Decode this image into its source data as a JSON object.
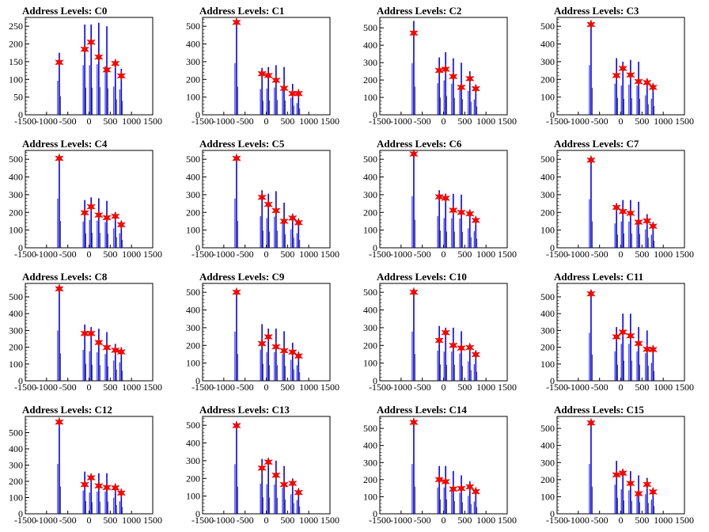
{
  "charts": [
    {
      "title": "Address Levels: C0",
      "ymax": 275,
      "yticks": [
        0,
        50,
        100,
        150,
        200,
        250
      ],
      "spikes": [
        [
          -700,
          175
        ],
        [
          -100,
          255
        ],
        [
          50,
          255
        ],
        [
          230,
          260
        ],
        [
          420,
          250
        ],
        [
          620,
          145
        ],
        [
          760,
          130
        ]
      ],
      "stars": [
        [
          -700,
          148
        ],
        [
          -100,
          185
        ],
        [
          50,
          205
        ],
        [
          230,
          163
        ],
        [
          420,
          127
        ],
        [
          620,
          145
        ],
        [
          760,
          110
        ]
      ]
    },
    {
      "title": "Address Levels: C1",
      "ymax": 550,
      "yticks": [
        0,
        100,
        200,
        300,
        400,
        500
      ],
      "spikes": [
        [
          -700,
          530
        ],
        [
          -100,
          265
        ],
        [
          50,
          270
        ],
        [
          230,
          280
        ],
        [
          420,
          270
        ],
        [
          620,
          175
        ],
        [
          760,
          120
        ]
      ],
      "stars": [
        [
          -700,
          522
        ],
        [
          -100,
          232
        ],
        [
          50,
          222
        ],
        [
          230,
          195
        ],
        [
          420,
          150
        ],
        [
          620,
          120
        ],
        [
          760,
          120
        ]
      ]
    },
    {
      "title": "Address Levels: C2",
      "ymax": 560,
      "yticks": [
        0,
        100,
        200,
        300,
        400,
        500
      ],
      "spikes": [
        [
          -700,
          540
        ],
        [
          -100,
          330
        ],
        [
          50,
          360
        ],
        [
          230,
          325
        ],
        [
          420,
          300
        ],
        [
          620,
          250
        ],
        [
          760,
          160
        ]
      ],
      "stars": [
        [
          -700,
          470
        ],
        [
          -100,
          255
        ],
        [
          50,
          262
        ],
        [
          230,
          220
        ],
        [
          420,
          158
        ],
        [
          620,
          208
        ],
        [
          760,
          150
        ]
      ]
    },
    {
      "title": "Address Levels: C3",
      "ymax": 550,
      "yticks": [
        0,
        100,
        200,
        300,
        400,
        500
      ],
      "spikes": [
        [
          -700,
          510
        ],
        [
          -100,
          320
        ],
        [
          50,
          300
        ],
        [
          230,
          310
        ],
        [
          420,
          300
        ],
        [
          620,
          200
        ],
        [
          760,
          165
        ]
      ],
      "stars": [
        [
          -700,
          510
        ],
        [
          -100,
          222
        ],
        [
          50,
          262
        ],
        [
          230,
          225
        ],
        [
          420,
          188
        ],
        [
          620,
          182
        ],
        [
          760,
          155
        ]
      ]
    },
    {
      "title": "Address Levels: C4",
      "ymax": 550,
      "yticks": [
        0,
        100,
        200,
        300,
        400,
        500
      ],
      "spikes": [
        [
          -700,
          505
        ],
        [
          -100,
          270
        ],
        [
          50,
          285
        ],
        [
          230,
          280
        ],
        [
          420,
          265
        ],
        [
          620,
          200
        ],
        [
          760,
          150
        ]
      ],
      "stars": [
        [
          -700,
          505
        ],
        [
          -100,
          198
        ],
        [
          50,
          232
        ],
        [
          230,
          185
        ],
        [
          420,
          170
        ],
        [
          620,
          178
        ],
        [
          760,
          130
        ]
      ]
    },
    {
      "title": "Address Levels: C5",
      "ymax": 550,
      "yticks": [
        0,
        100,
        200,
        300,
        400,
        500
      ],
      "spikes": [
        [
          -700,
          505
        ],
        [
          -100,
          325
        ],
        [
          50,
          305
        ],
        [
          230,
          320
        ],
        [
          420,
          255
        ],
        [
          620,
          190
        ],
        [
          760,
          150
        ]
      ],
      "stars": [
        [
          -700,
          505
        ],
        [
          -100,
          285
        ],
        [
          50,
          245
        ],
        [
          230,
          210
        ],
        [
          420,
          150
        ],
        [
          620,
          168
        ],
        [
          760,
          142
        ]
      ]
    },
    {
      "title": "Address Levels: C6",
      "ymax": 550,
      "yticks": [
        0,
        100,
        200,
        300,
        400,
        500
      ],
      "spikes": [
        [
          -700,
          530
        ],
        [
          -100,
          325
        ],
        [
          50,
          305
        ],
        [
          230,
          305
        ],
        [
          420,
          300
        ],
        [
          620,
          200
        ],
        [
          760,
          170
        ]
      ],
      "stars": [
        [
          -700,
          530
        ],
        [
          -100,
          288
        ],
        [
          50,
          280
        ],
        [
          230,
          212
        ],
        [
          420,
          200
        ],
        [
          620,
          192
        ],
        [
          760,
          155
        ]
      ]
    },
    {
      "title": "Address Levels: C7",
      "ymax": 550,
      "yticks": [
        0,
        100,
        200,
        300,
        400,
        500
      ],
      "spikes": [
        [
          -700,
          500
        ],
        [
          -100,
          250
        ],
        [
          50,
          270
        ],
        [
          230,
          270
        ],
        [
          420,
          260
        ],
        [
          620,
          190
        ],
        [
          760,
          135
        ]
      ],
      "stars": [
        [
          -700,
          495
        ],
        [
          -100,
          228
        ],
        [
          50,
          205
        ],
        [
          230,
          195
        ],
        [
          420,
          145
        ],
        [
          620,
          152
        ],
        [
          760,
          122
        ]
      ]
    },
    {
      "title": "Address Levels: C8",
      "ymax": 580,
      "yticks": [
        0,
        100,
        200,
        300,
        400,
        500
      ],
      "spikes": [
        [
          -700,
          545
        ],
        [
          -100,
          335
        ],
        [
          50,
          320
        ],
        [
          230,
          310
        ],
        [
          420,
          290
        ],
        [
          620,
          220
        ],
        [
          760,
          200
        ]
      ],
      "stars": [
        [
          -700,
          548
        ],
        [
          -100,
          282
        ],
        [
          50,
          282
        ],
        [
          230,
          228
        ],
        [
          420,
          198
        ],
        [
          620,
          182
        ],
        [
          760,
          172
        ]
      ]
    },
    {
      "title": "Address Levels: C9",
      "ymax": 550,
      "yticks": [
        0,
        100,
        200,
        300,
        400,
        500
      ],
      "spikes": [
        [
          -700,
          505
        ],
        [
          -100,
          320
        ],
        [
          50,
          295
        ],
        [
          230,
          295
        ],
        [
          420,
          280
        ],
        [
          620,
          215
        ],
        [
          760,
          160
        ]
      ],
      "stars": [
        [
          -700,
          500
        ],
        [
          -100,
          210
        ],
        [
          50,
          248
        ],
        [
          230,
          192
        ],
        [
          420,
          170
        ],
        [
          620,
          162
        ],
        [
          760,
          140
        ]
      ]
    },
    {
      "title": "Address Levels: C10",
      "ymax": 550,
      "yticks": [
        0,
        100,
        200,
        300,
        400,
        500
      ],
      "spikes": [
        [
          -700,
          505
        ],
        [
          -100,
          310
        ],
        [
          50,
          300
        ],
        [
          230,
          300
        ],
        [
          420,
          280
        ],
        [
          620,
          200
        ],
        [
          760,
          170
        ]
      ],
      "stars": [
        [
          -700,
          500
        ],
        [
          -100,
          228
        ],
        [
          50,
          272
        ],
        [
          230,
          200
        ],
        [
          420,
          185
        ],
        [
          620,
          188
        ],
        [
          760,
          148
        ]
      ]
    },
    {
      "title": "Address Levels: C11",
      "ymax": 580,
      "yticks": [
        0,
        100,
        200,
        300,
        400,
        500
      ],
      "spikes": [
        [
          -700,
          520
        ],
        [
          -100,
          320
        ],
        [
          50,
          400
        ],
        [
          230,
          400
        ],
        [
          420,
          320
        ],
        [
          620,
          300
        ],
        [
          760,
          195
        ]
      ],
      "stars": [
        [
          -700,
          518
        ],
        [
          -100,
          262
        ],
        [
          50,
          290
        ],
        [
          230,
          268
        ],
        [
          420,
          222
        ],
        [
          620,
          188
        ],
        [
          760,
          186
        ]
      ]
    },
    {
      "title": "Address Levels: C12",
      "ymax": 600,
      "yticks": [
        0,
        100,
        200,
        300,
        400,
        500
      ],
      "spikes": [
        [
          -700,
          560
        ],
        [
          -100,
          260
        ],
        [
          50,
          240
        ],
        [
          230,
          250
        ],
        [
          420,
          250
        ],
        [
          620,
          180
        ],
        [
          760,
          140
        ]
      ],
      "stars": [
        [
          -700,
          565
        ],
        [
          -100,
          180
        ],
        [
          50,
          222
        ],
        [
          230,
          172
        ],
        [
          420,
          162
        ],
        [
          620,
          160
        ],
        [
          760,
          128
        ]
      ]
    },
    {
      "title": "Address Levels: C13",
      "ymax": 550,
      "yticks": [
        0,
        100,
        200,
        300,
        400,
        500
      ],
      "spikes": [
        [
          -700,
          510
        ],
        [
          -100,
          310
        ],
        [
          50,
          305
        ],
        [
          230,
          300
        ],
        [
          420,
          270
        ],
        [
          620,
          200
        ],
        [
          760,
          140
        ]
      ],
      "stars": [
        [
          -700,
          498
        ],
        [
          -100,
          258
        ],
        [
          50,
          292
        ],
        [
          230,
          218
        ],
        [
          420,
          165
        ],
        [
          620,
          172
        ],
        [
          760,
          120
        ]
      ]
    },
    {
      "title": "Address Levels: C14",
      "ymax": 570,
      "yticks": [
        0,
        100,
        200,
        300,
        400,
        500
      ],
      "spikes": [
        [
          -700,
          530
        ],
        [
          -100,
          280
        ],
        [
          50,
          280
        ],
        [
          230,
          250
        ],
        [
          420,
          225
        ],
        [
          620,
          190
        ],
        [
          760,
          130
        ]
      ],
      "stars": [
        [
          -700,
          535
        ],
        [
          -100,
          200
        ],
        [
          50,
          188
        ],
        [
          230,
          145
        ],
        [
          420,
          148
        ],
        [
          620,
          158
        ],
        [
          760,
          130
        ]
      ]
    },
    {
      "title": "Address Levels: C15",
      "ymax": 570,
      "yticks": [
        0,
        100,
        200,
        300,
        400,
        500
      ],
      "spikes": [
        [
          -700,
          530
        ],
        [
          -100,
          310
        ],
        [
          50,
          260
        ],
        [
          230,
          250
        ],
        [
          420,
          225
        ],
        [
          620,
          210
        ],
        [
          760,
          150
        ]
      ],
      "stars": [
        [
          -700,
          532
        ],
        [
          -100,
          228
        ],
        [
          50,
          238
        ],
        [
          230,
          178
        ],
        [
          420,
          118
        ],
        [
          620,
          172
        ],
        [
          760,
          128
        ]
      ]
    }
  ],
  "chart_data": {
    "type": "bar",
    "xlim": [
      -1500,
      1500
    ],
    "xticks": [
      -1500,
      -1000,
      -500,
      0,
      500,
      1000,
      1500
    ],
    "spike_color": "#0000ff",
    "star_color": "#ff0000",
    "panels": 16
  }
}
